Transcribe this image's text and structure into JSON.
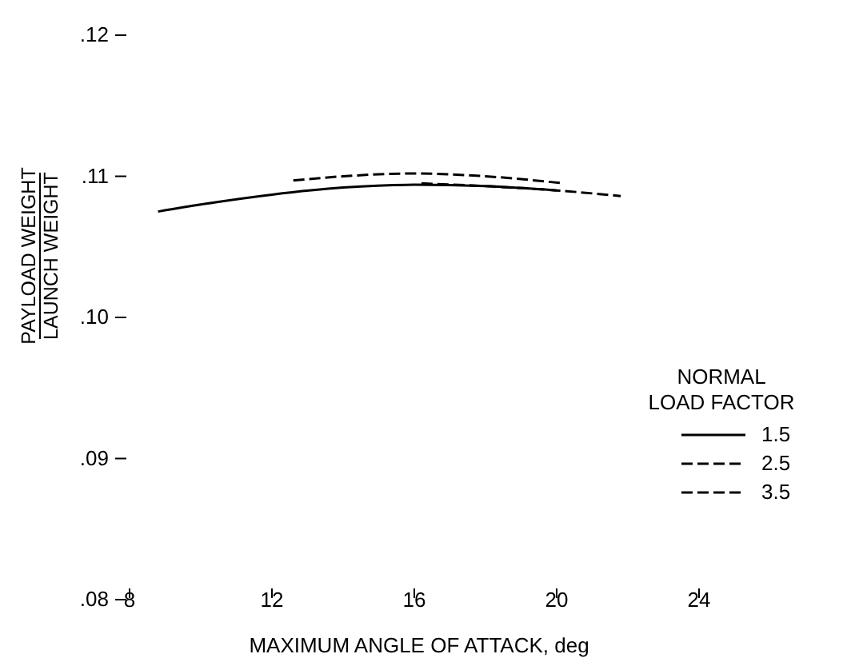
{
  "chart_data": {
    "type": "line",
    "xlabel": "MAXIMUM ANGLE OF ATTACK, deg",
    "ylabel": "PAYLOAD WEIGHT\nLAUNCH WEIGHT",
    "legend_title": "NORMAL\nLOAD FACTOR",
    "legend": "right",
    "xlim": [
      8,
      24
    ],
    "xticks": [
      8,
      12,
      16,
      20,
      24
    ],
    "ylim": [
      0.08,
      0.12
    ],
    "yticks": [
      {
        "value": 0.08,
        "label": ".08"
      },
      {
        "value": 0.09,
        "label": ".09"
      },
      {
        "value": 0.1,
        "label": ".10"
      },
      {
        "value": 0.11,
        "label": ".11"
      },
      {
        "value": 0.12,
        "label": ".12"
      }
    ],
    "series": [
      {
        "name": "1.5",
        "color": "#000000",
        "line_style": "solid",
        "x": [
          8.8,
          10,
          12,
          14,
          16,
          18,
          20
        ],
        "values": [
          0.1075,
          0.108,
          0.1087,
          0.1092,
          0.1094,
          0.1093,
          0.109
        ]
      },
      {
        "name": "2.5",
        "color": "#000000",
        "line_style": "dashed",
        "x": [
          12.6,
          14,
          16,
          18,
          20.2
        ],
        "values": [
          0.1097,
          0.11,
          0.1102,
          0.11,
          0.1095
        ]
      },
      {
        "name": "3.5",
        "color": "#000000",
        "line_style": "dashed",
        "x": [
          16.2,
          18,
          20,
          21.8
        ],
        "values": [
          0.1095,
          0.1093,
          0.109,
          0.1086
        ]
      }
    ]
  }
}
